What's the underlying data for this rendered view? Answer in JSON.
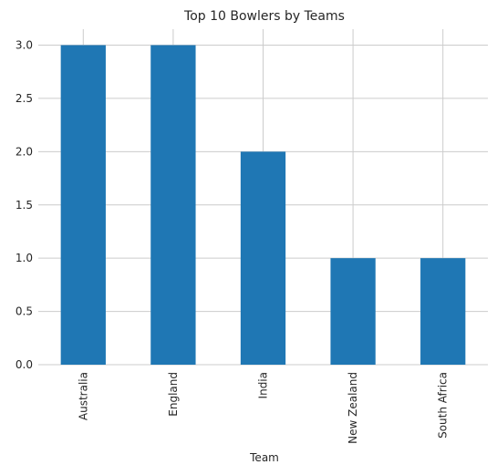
{
  "chart_data": {
    "type": "bar",
    "title": "Top 10 Bowlers by Teams",
    "xlabel": "Team",
    "ylabel": "",
    "categories": [
      "Australia",
      "England",
      "India",
      "New Zealand",
      "South Africa"
    ],
    "values": [
      3,
      3,
      2,
      1,
      1
    ],
    "ylim": [
      0,
      3.15
    ],
    "yticks": [
      "0.0",
      "0.5",
      "1.0",
      "1.5",
      "2.0",
      "2.5",
      "3.0"
    ],
    "grid": true,
    "bar_color": "#1f77b4"
  }
}
